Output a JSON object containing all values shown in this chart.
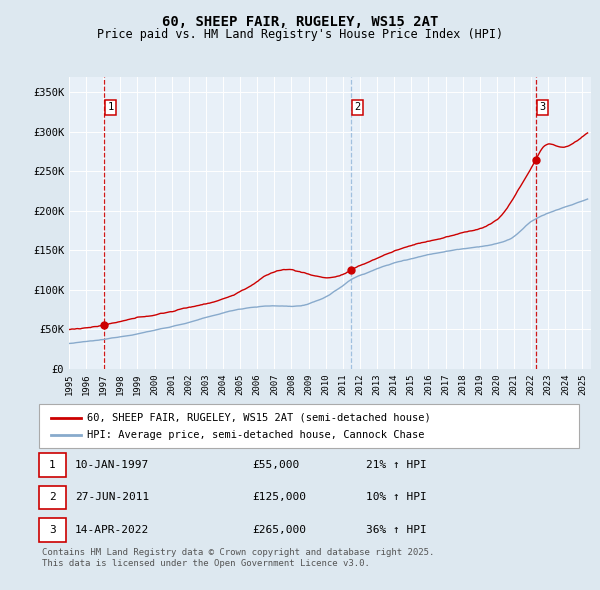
{
  "title": "60, SHEEP FAIR, RUGELEY, WS15 2AT",
  "subtitle": "Price paid vs. HM Land Registry's House Price Index (HPI)",
  "ylabel_ticks": [
    "£0",
    "£50K",
    "£100K",
    "£150K",
    "£200K",
    "£250K",
    "£300K",
    "£350K"
  ],
  "ytick_values": [
    0,
    50000,
    100000,
    150000,
    200000,
    250000,
    300000,
    350000
  ],
  "ylim": [
    0,
    370000
  ],
  "xlim_start": 1995.0,
  "xlim_end": 2025.5,
  "sale_dates": [
    1997.04,
    2011.49,
    2022.28
  ],
  "sale_prices": [
    55000,
    125000,
    265000
  ],
  "sale_labels": [
    "1",
    "2",
    "3"
  ],
  "sale_pct": [
    "21%",
    "10%",
    "36%"
  ],
  "vline_styles": [
    "red_dash",
    "blue_dash",
    "red_dash"
  ],
  "legend_line1": "60, SHEEP FAIR, RUGELEY, WS15 2AT (semi-detached house)",
  "legend_line2": "HPI: Average price, semi-detached house, Cannock Chase",
  "table_rows": [
    [
      "1",
      "10-JAN-1997",
      "£55,000",
      "21% ↑ HPI"
    ],
    [
      "2",
      "27-JUN-2011",
      "£125,000",
      "10% ↑ HPI"
    ],
    [
      "3",
      "14-APR-2022",
      "£265,000",
      "36% ↑ HPI"
    ]
  ],
  "footnote": "Contains HM Land Registry data © Crown copyright and database right 2025.\nThis data is licensed under the Open Government Licence v3.0.",
  "price_line_color": "#cc0000",
  "hpi_line_color": "#88aacc",
  "vline_red_color": "#cc0000",
  "vline_blue_color": "#99bbdd",
  "bg_color": "#dde8f0",
  "plot_bg_color": "#e8f0f8",
  "grid_color": "#ffffff",
  "marker_color": "#cc0000",
  "box_color": "#cc0000"
}
